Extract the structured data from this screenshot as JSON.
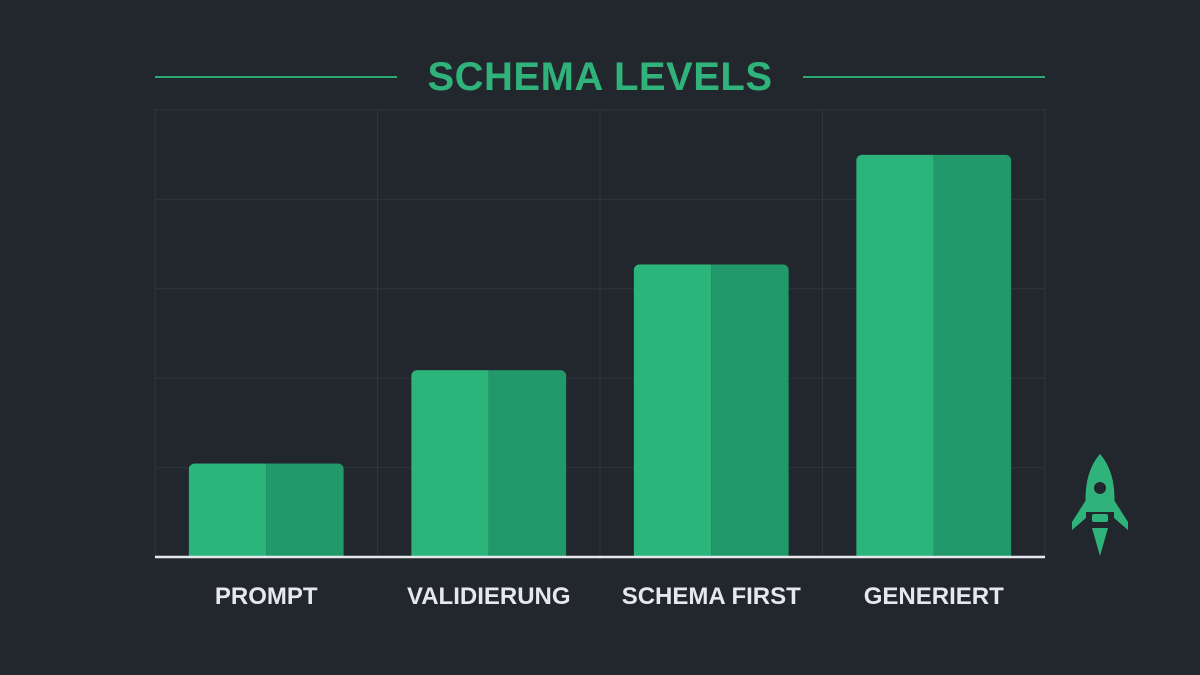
{
  "chart_data": {
    "type": "bar",
    "title": "SCHEMA LEVELS",
    "categories": [
      "PROMPT",
      "VALIDIERUNG",
      "SCHEMA FIRST",
      "GENERIERT"
    ],
    "values": [
      23,
      46,
      72,
      99
    ],
    "ylim": [
      0,
      110
    ],
    "grid": true,
    "legend": "none"
  },
  "colors": {
    "background": "#22272e",
    "bar_light": "#2bb57b",
    "bar_dark": "#21996a",
    "accent": "#2fb37b",
    "grid": "#2e353d",
    "axis": "#e6e8eb"
  },
  "icons": {
    "decoration": "rocket-icon"
  }
}
